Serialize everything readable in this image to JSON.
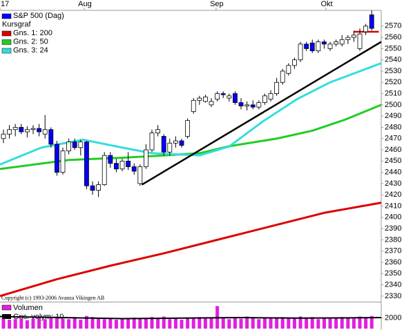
{
  "chart_data": {
    "type": "candlestick",
    "name": "S&P 500 (Dag)",
    "subtitle": "Kursgraf",
    "up_color": "#ffffff",
    "down_color": "#0000ff",
    "copyright": "Copyright (c) 1993-2006 Avanza Vikingen AB",
    "xlim": [
      -0.58,
      63.6
    ],
    "xticks": [
      {
        "value": -0.58,
        "label": "17"
      },
      {
        "value": 13.6,
        "label": "Aug"
      },
      {
        "value": 35.8,
        "label": "Sep"
      },
      {
        "value": 54.3,
        "label": "Okt"
      }
    ],
    "ylim": [
      2325,
      2584
    ],
    "yticks": [
      2330,
      2340,
      2350,
      2360,
      2370,
      2380,
      2390,
      2400,
      2410,
      2420,
      2430,
      2440,
      2450,
      2460,
      2470,
      2480,
      2490,
      2500,
      2510,
      2520,
      2530,
      2540,
      2550,
      2560,
      2570
    ],
    "open": [
      2470,
      2474,
      2478,
      2480,
      2476,
      2478,
      2479,
      2474,
      2478,
      2465,
      2440,
      2459,
      2467,
      2462,
      2467,
      2428,
      2424,
      2429,
      2455,
      2448,
      2443,
      2450,
      2445,
      2430,
      2445,
      2460,
      2475,
      2472,
      2458,
      2466,
      2468,
      2472,
      2494,
      2504,
      2503,
      2500,
      2505,
      2510,
      2506,
      2510,
      2502,
      2499,
      2500,
      2498,
      2502,
      2505,
      2510,
      2520,
      2528,
      2535,
      2540,
      2554,
      2555,
      2548,
      2556,
      2550,
      2554,
      2554,
      2558,
      2560,
      2550,
      2565,
      2580
    ],
    "high": [
      2478,
      2482,
      2483,
      2483,
      2481,
      2482,
      2483,
      2491,
      2480,
      2468,
      2462,
      2470,
      2470,
      2469,
      2468,
      2432,
      2432,
      2458,
      2458,
      2452,
      2452,
      2458,
      2448,
      2447,
      2465,
      2478,
      2482,
      2474,
      2470,
      2472,
      2470,
      2488,
      2506,
      2508,
      2509,
      2506,
      2512,
      2512,
      2510,
      2512,
      2506,
      2503,
      2504,
      2504,
      2510,
      2513,
      2524,
      2532,
      2537,
      2542,
      2556,
      2556,
      2558,
      2558,
      2558,
      2556,
      2558,
      2562,
      2562,
      2566,
      2568,
      2572,
      2584
    ],
    "low": [
      2466,
      2470,
      2472,
      2474,
      2471,
      2474,
      2472,
      2470,
      2462,
      2437,
      2438,
      2456,
      2460,
      2455,
      2425,
      2420,
      2418,
      2428,
      2444,
      2440,
      2441,
      2442,
      2438,
      2428,
      2443,
      2458,
      2472,
      2455,
      2455,
      2462,
      2462,
      2470,
      2492,
      2500,
      2502,
      2498,
      2503,
      2506,
      2503,
      2500,
      2496,
      2495,
      2496,
      2496,
      2500,
      2503,
      2508,
      2518,
      2526,
      2532,
      2538,
      2548,
      2546,
      2546,
      2550,
      2548,
      2552,
      2552,
      2554,
      2556,
      2548,
      2562,
      2566
    ],
    "close": [
      2474,
      2478,
      2480,
      2476,
      2478,
      2479,
      2476,
      2478,
      2465,
      2440,
      2459,
      2467,
      2462,
      2467,
      2428,
      2424,
      2429,
      2455,
      2448,
      2443,
      2450,
      2445,
      2441,
      2445,
      2460,
      2475,
      2478,
      2458,
      2466,
      2468,
      2464,
      2486,
      2504,
      2506,
      2507,
      2503,
      2510,
      2509,
      2508,
      2502,
      2499,
      2500,
      2498,
      2502,
      2508,
      2510,
      2520,
      2530,
      2535,
      2540,
      2554,
      2550,
      2548,
      2556,
      2554,
      2554,
      2556,
      2558,
      2560,
      2562,
      2563,
      2570,
      2568
    ],
    "series": [
      {
        "name": "Gns. 1: 200",
        "color": "#dd0000",
        "x": [
          -0.58,
          9,
          18,
          27,
          36,
          45,
          54,
          63.6
        ],
        "values": [
          2330,
          2345,
          2357,
          2368,
          2380,
          2392,
          2404,
          2413
        ]
      },
      {
        "name": "Gns. 2: 50",
        "color": "#22cc22",
        "x": [
          -0.58,
          11,
          20,
          27,
          33,
          37.8,
          46,
          52,
          57.6,
          63.6
        ],
        "values": [
          2443,
          2451,
          2453,
          2455,
          2457,
          2463,
          2470,
          2477,
          2487,
          2500
        ]
      },
      {
        "name": "Gns. 3: 24",
        "color": "#33dddd",
        "x": [
          -0.58,
          6.4,
          13.4,
          20,
          25,
          33,
          38,
          43.6,
          49.4,
          55,
          63.6
        ],
        "values": [
          2447,
          2462,
          2469,
          2462,
          2457,
          2455,
          2463,
          2485,
          2505,
          2520,
          2537
        ]
      }
    ],
    "trendlines": [
      {
        "color": "#000000",
        "x": [
          23.3,
          63.6
        ],
        "values": [
          2429,
          2556
        ]
      },
      {
        "color": "#dd0000",
        "x": [
          59.0,
          63.2
        ],
        "values": [
          2565,
          2565
        ]
      }
    ],
    "volume": {
      "name": "Volumen",
      "color": "#e020e0",
      "ylim": [
        0,
        5000
      ],
      "yticks": [
        2000
      ],
      "values": [
        1900,
        1700,
        1800,
        2000,
        1600,
        1900,
        2100,
        1800,
        2000,
        2300,
        1900,
        1800,
        2200,
        1700,
        2400,
        2200,
        1900,
        1800,
        2000,
        1700,
        1900,
        1800,
        2100,
        2000,
        1900,
        2200,
        2000,
        2300,
        1800,
        1900,
        1700,
        2100,
        2000,
        2200,
        1900,
        2100,
        4300,
        2000,
        1800,
        2200,
        1900,
        2300,
        2000,
        1800,
        2100,
        1900,
        2000,
        2200,
        1900,
        2100,
        2300,
        2000,
        2200,
        1800,
        2100,
        1900,
        2000,
        2200,
        2100,
        1900,
        2300,
        2000,
        2400
      ],
      "average": {
        "name": "Gns. volym: 10",
        "color": "#000000",
        "x": [
          -0.58,
          10,
          20,
          30,
          40,
          50,
          63.6
        ],
        "values": [
          2300,
          2100,
          1900,
          2000,
          2100,
          2000,
          2100
        ]
      }
    }
  }
}
